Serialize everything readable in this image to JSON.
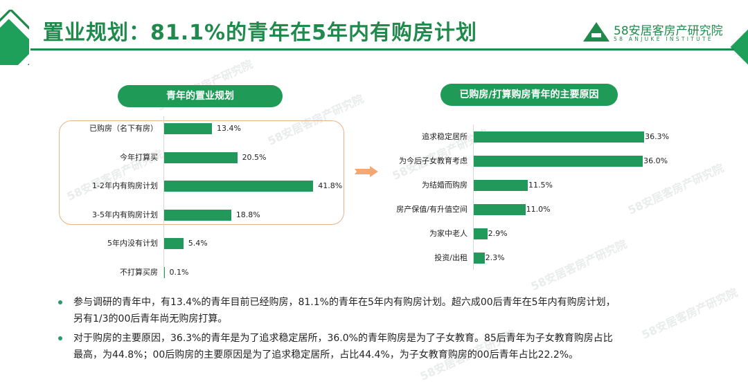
{
  "header": {
    "title": "置业规划：81.1%的青年在5年内有购房计划",
    "logo_cn": "58安居客房产研究院",
    "logo_en": "58 ANJUKE INSTITUTE"
  },
  "colors": {
    "brand_green": "#1f8a4c",
    "bar_green": "#21995a",
    "highlight_border": "#e3b48c",
    "arrow_orange": "#f3a873"
  },
  "watermark": "58安居客房产研究院",
  "chart_data": [
    {
      "type": "bar",
      "orientation": "horizontal",
      "title": "青年的置业规划",
      "categories": [
        "已购房（名下有房）",
        "今年打算买",
        "1-2年内有购房计划",
        "3-5年内有购房计划",
        "5年内没有计划",
        "不打算买房"
      ],
      "values": [
        13.4,
        20.5,
        41.8,
        18.8,
        5.4,
        0.1
      ],
      "labels": [
        "13.4%",
        "20.5%",
        "41.8%",
        "18.8%",
        "5.4%",
        "0.1%"
      ],
      "unit": "%",
      "highlighted_categories": [
        "已购房（名下有房）",
        "今年打算买",
        "1-2年内有购房计划",
        "3-5年内有购房计划"
      ],
      "grid": false,
      "legend": "none"
    },
    {
      "type": "bar",
      "orientation": "horizontal",
      "title": "已购房/打算购房青年的主要原因",
      "categories": [
        "追求稳定居所",
        "为今后子女教育考虑",
        "为结婚而购房",
        "房产保值/有升值空间",
        "为家中老人",
        "投资/出租"
      ],
      "values": [
        36.3,
        36.0,
        11.5,
        11.0,
        2.9,
        2.3
      ],
      "labels": [
        "36.3%",
        "36.0%",
        "11.5%",
        "11.0%",
        "2.9%",
        "2.3%"
      ],
      "unit": "%",
      "grid": false,
      "legend": "none"
    }
  ],
  "notes": [
    {
      "line1": "参与调研的青年中，有13.4%的青年目前已经购房，81.1%的青年在5年内有购房计划。超六成00后青年在5年内有购房计划，",
      "line2": "另有1/3的00后青年尚无购房打算。"
    },
    {
      "line1": "对于购房的主要原因，36.3%的青年是为了追求稳定居所，36.0%的青年购房是为了子女教育。85后青年为子女教育购房占比",
      "line2": "最高，为44.8%；00后购房的主要原因是为了追求稳定居所，占比44.4%，为子女教育购房的00后青年占比22.2%。"
    }
  ]
}
